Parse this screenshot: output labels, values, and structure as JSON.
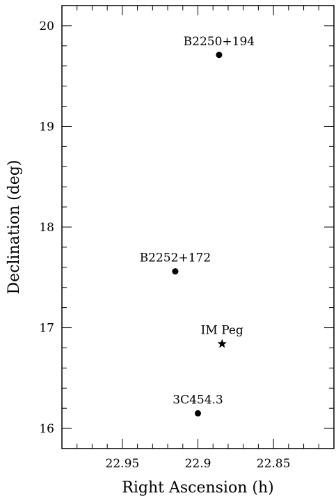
{
  "chart_data": {
    "type": "scatter",
    "title": "",
    "xlabel": "Right Ascension (h)",
    "ylabel": "Declination (deg)",
    "xlim": [
      22.99,
      22.81
    ],
    "ylim": [
      15.8,
      20.2
    ],
    "x_inverted": true,
    "x_ticks_major": [
      22.95,
      22.9,
      22.85
    ],
    "x_tick_labels": [
      "22.95",
      "22.9",
      "22.85"
    ],
    "y_ticks_major": [
      16,
      17,
      18,
      19,
      20
    ],
    "y_tick_labels": [
      "16",
      "17",
      "18",
      "19",
      "20"
    ],
    "grid": false,
    "points": [
      {
        "label": "B2250+194",
        "x": 22.886,
        "y": 19.71,
        "marker": "circle"
      },
      {
        "label": "B2252+172",
        "x": 22.915,
        "y": 17.56,
        "marker": "circle"
      },
      {
        "label": "IM Peg",
        "x": 22.884,
        "y": 16.84,
        "marker": "star"
      },
      {
        "label": "3C454.3",
        "x": 22.9,
        "y": 16.15,
        "marker": "circle"
      }
    ]
  }
}
